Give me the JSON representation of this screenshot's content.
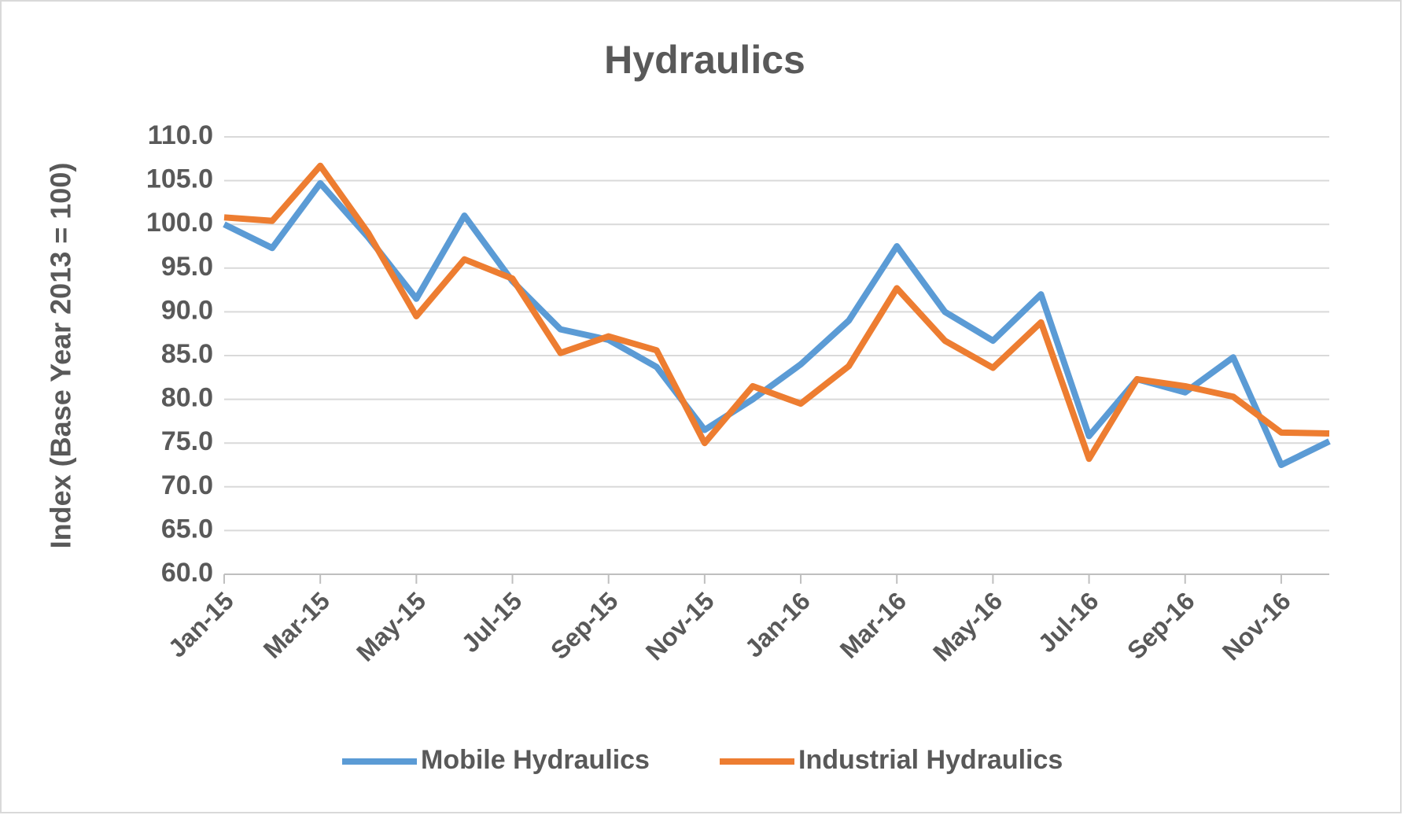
{
  "chart_data": {
    "type": "line",
    "title": "Hydraulics",
    "y_label": "Index (Base Year 2013 = 100)",
    "categories": [
      "Jan-15",
      null,
      "Mar-15",
      null,
      "May-15",
      null,
      "Jul-15",
      null,
      "Sep-15",
      null,
      "Nov-15",
      null,
      "Jan-16",
      null,
      "Mar-16",
      null,
      "May-16",
      null,
      "Jul-16",
      null,
      "Sep-16",
      null,
      "Nov-16",
      null
    ],
    "series": [
      {
        "name": "Mobile Hydraulics",
        "color": "#5b9bd5",
        "values": [
          100,
          97.3,
          104.7,
          98.5,
          91.5,
          101,
          93.5,
          88,
          86.8,
          83.7,
          76.5,
          80,
          84,
          89,
          97.5,
          90,
          86.7,
          92,
          75.8,
          82.3,
          80.8,
          84.8,
          72.5,
          75.2
        ]
      },
      {
        "name": "Industrial Hydraulics",
        "color": "#ed7d31",
        "values": [
          100.8,
          100.4,
          106.7,
          99,
          89.5,
          96,
          93.8,
          85.3,
          87.2,
          85.6,
          75,
          81.5,
          79.5,
          83.8,
          92.7,
          86.7,
          83.6,
          88.8,
          73.2,
          82.3,
          81.5,
          80.3,
          76.2,
          76.1
        ]
      }
    ],
    "ylim": [
      60,
      110
    ],
    "yticks": [
      {
        "value": 60,
        "label": "60.0"
      },
      {
        "value": 65,
        "label": "65.0"
      },
      {
        "value": 70,
        "label": "70.0"
      },
      {
        "value": 75,
        "label": "75.0"
      },
      {
        "value": 80,
        "label": "80.0"
      },
      {
        "value": 85,
        "label": "85.0"
      },
      {
        "value": 90,
        "label": "90.0"
      },
      {
        "value": 95,
        "label": "95.0"
      },
      {
        "value": 100,
        "label": "100.0"
      },
      {
        "value": 105,
        "label": "105.0"
      },
      {
        "value": 110,
        "label": "110.0"
      }
    ],
    "grid": true,
    "legend": "bottom"
  }
}
